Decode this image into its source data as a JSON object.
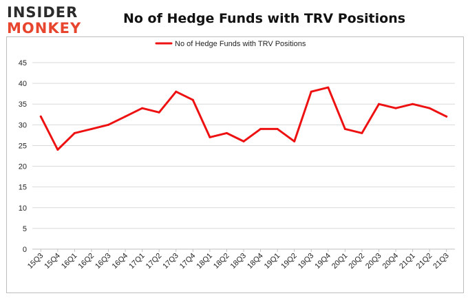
{
  "logo": {
    "line1": "INSIDER",
    "line2": "MONKEY"
  },
  "colors": {
    "series": "#ee1111",
    "grid": "#d9d9d9",
    "logo_accent": "#e8452f"
  },
  "chart_data": {
    "type": "line",
    "title": "No of Hedge Funds with TRV Positions",
    "legend_position": "top-center",
    "grid": true,
    "ylim": [
      0,
      45
    ],
    "yticks": [
      0,
      5,
      10,
      15,
      20,
      25,
      30,
      35,
      40,
      45
    ],
    "categories": [
      "15Q3",
      "15Q4",
      "16Q1",
      "16Q2",
      "16Q3",
      "16Q4",
      "17Q1",
      "17Q2",
      "17Q3",
      "17Q4",
      "18Q1",
      "18Q2",
      "18Q3",
      "18Q4",
      "19Q1",
      "19Q2",
      "19Q3",
      "19Q4",
      "20Q1",
      "20Q2",
      "20Q3",
      "20Q4",
      "21Q1",
      "21Q2",
      "21Q3"
    ],
    "series": [
      {
        "name": "No of Hedge Funds with TRV Positions",
        "values": [
          32,
          24,
          28,
          29,
          30,
          32,
          34,
          33,
          38,
          36,
          27,
          28,
          26,
          29,
          29,
          26,
          38,
          39,
          29,
          28,
          35,
          34,
          35,
          34,
          32
        ]
      }
    ]
  }
}
